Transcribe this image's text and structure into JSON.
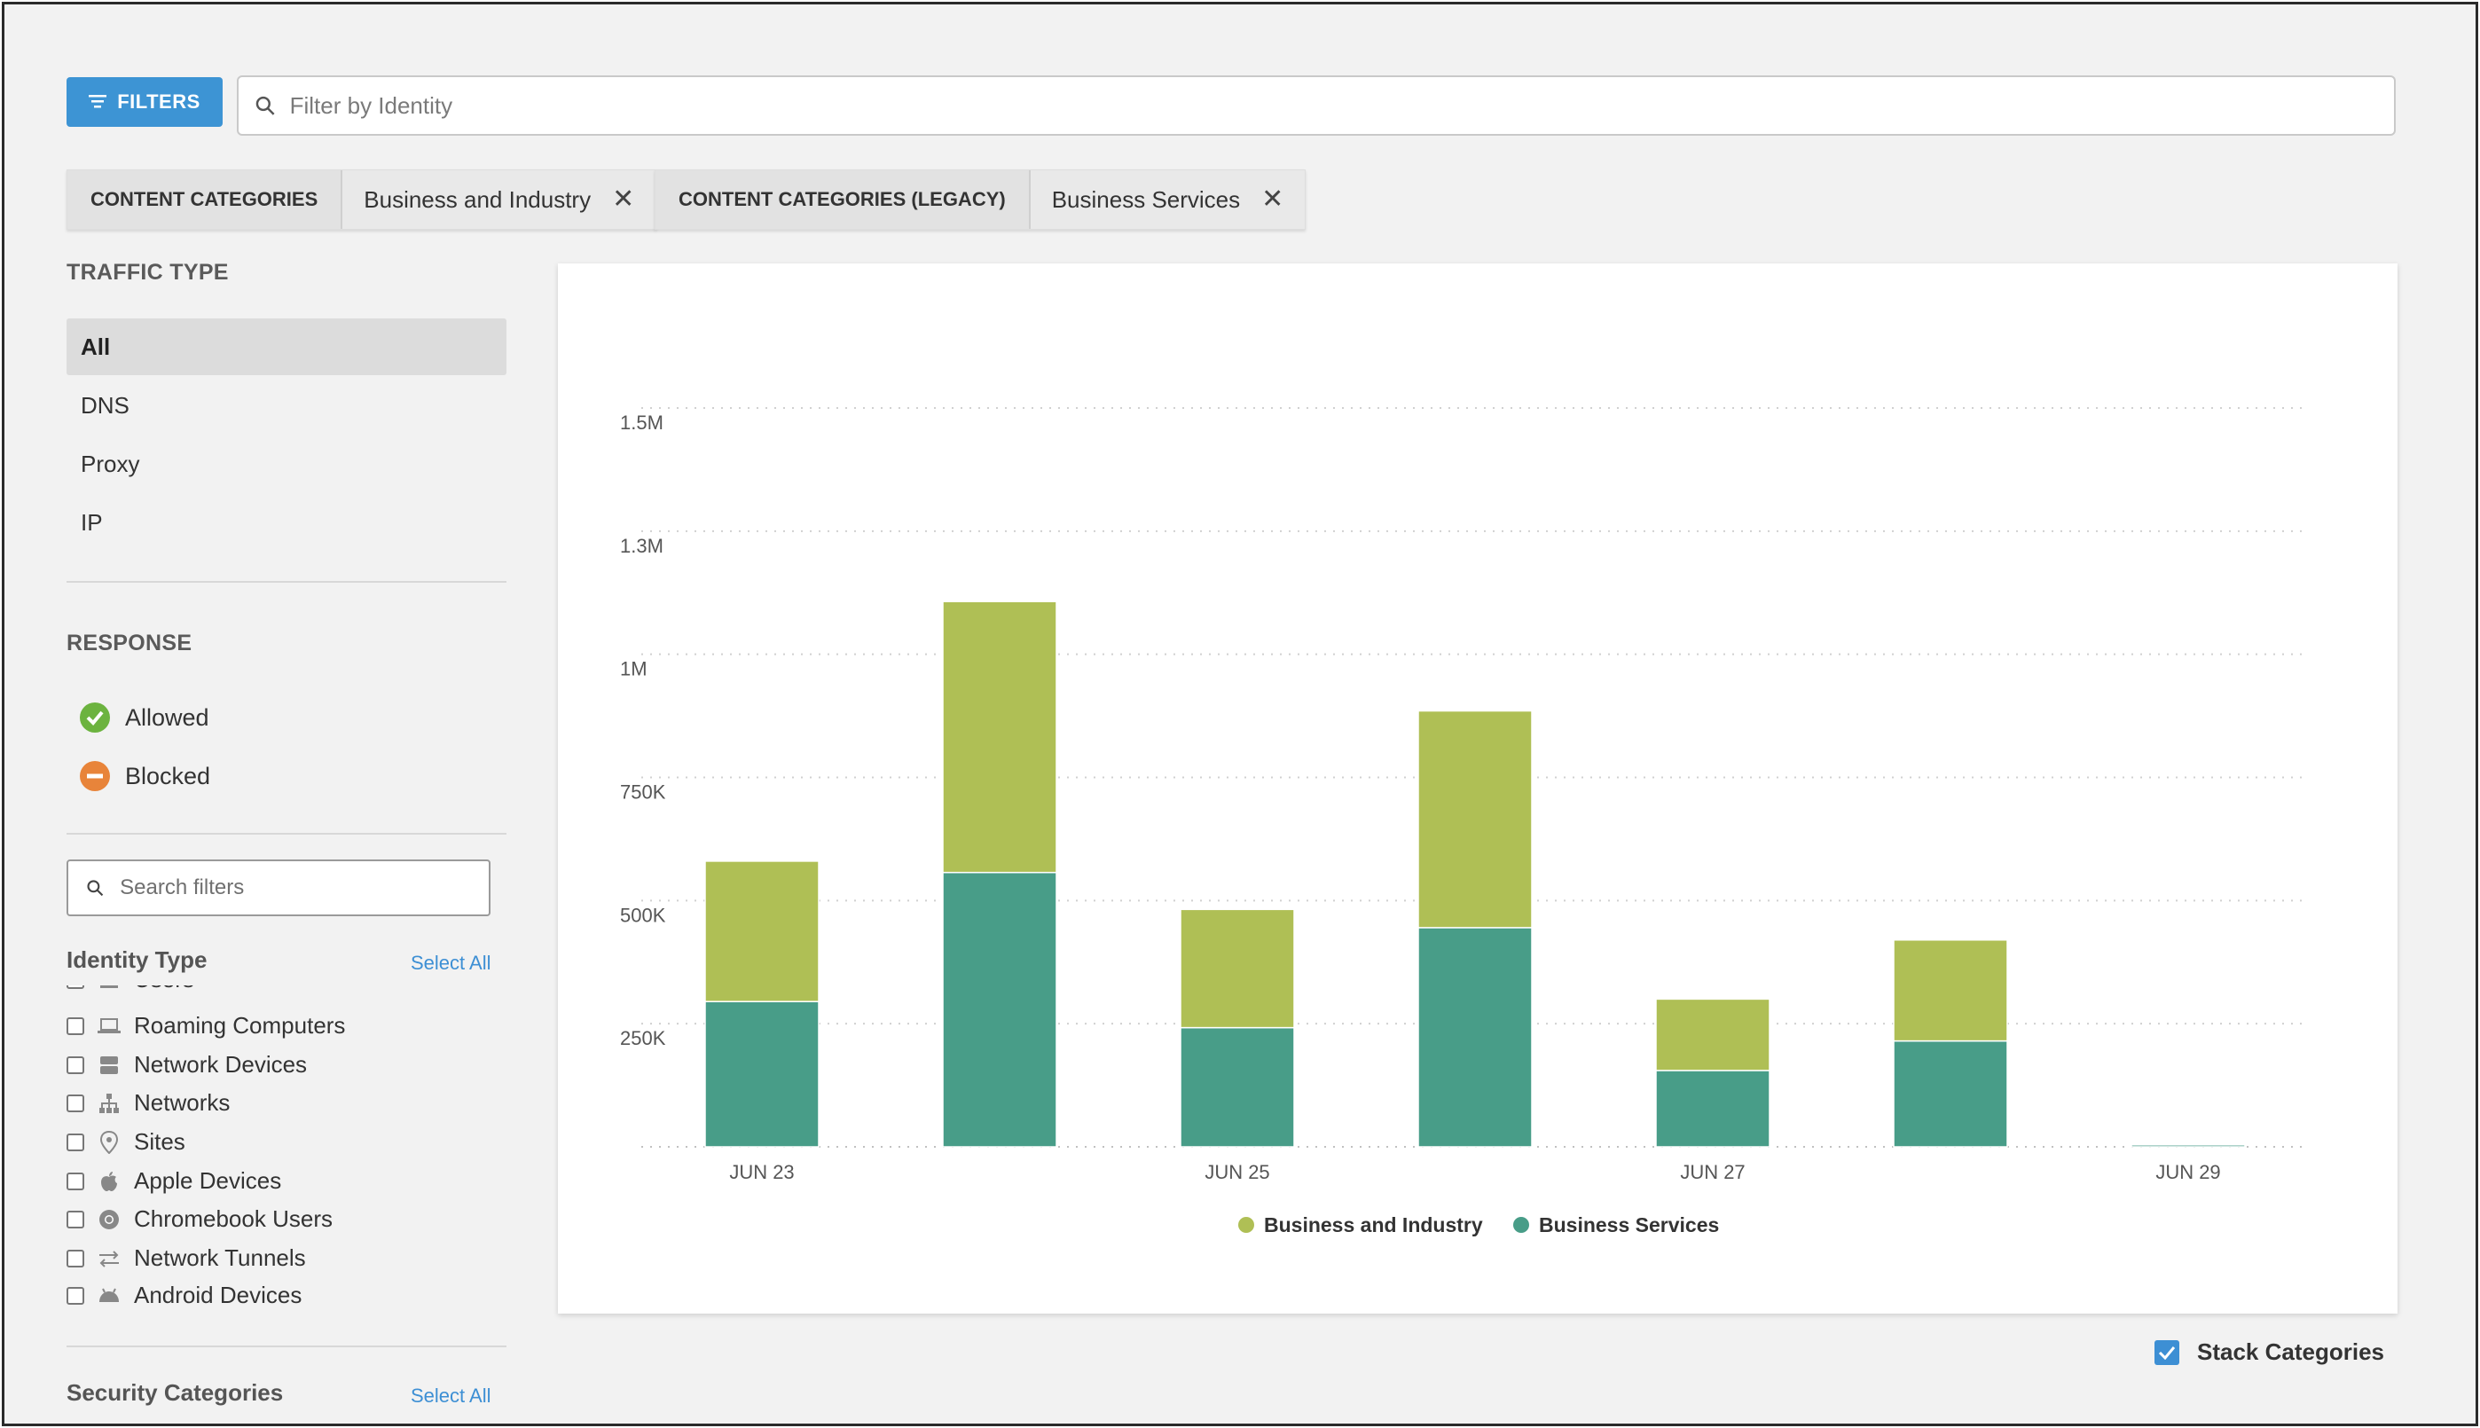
{
  "toolbar": {
    "filters_label": "FILTERS",
    "search_placeholder": "Filter by Identity"
  },
  "active_filters": [
    {
      "key": "CONTENT CATEGORIES",
      "value": "Business and Industry"
    },
    {
      "key": "CONTENT CATEGORIES (LEGACY)",
      "value": "Business Services"
    }
  ],
  "sidebar": {
    "traffic_type": {
      "title": "TRAFFIC TYPE",
      "items": [
        "All",
        "DNS",
        "Proxy",
        "IP"
      ],
      "selected": "All"
    },
    "response": {
      "title": "RESPONSE",
      "items": [
        {
          "label": "Allowed",
          "icon": "check-circle-icon",
          "color": "#6cb33f"
        },
        {
          "label": "Blocked",
          "icon": "minus-circle-icon",
          "color": "#e8843a"
        }
      ]
    },
    "search_filters_placeholder": "Search filters",
    "identity_type": {
      "title": "Identity Type",
      "select_all": "Select All",
      "partial_item": "Users",
      "items": [
        {
          "label": "Roaming Computers",
          "icon": "laptop-icon"
        },
        {
          "label": "Network Devices",
          "icon": "network-device-icon"
        },
        {
          "label": "Networks",
          "icon": "network-tree-icon"
        },
        {
          "label": "Sites",
          "icon": "location-pin-icon"
        },
        {
          "label": "Apple Devices",
          "icon": "apple-icon"
        },
        {
          "label": "Chromebook Users",
          "icon": "chrome-icon"
        },
        {
          "label": "Network Tunnels",
          "icon": "tunnel-arrows-icon"
        },
        {
          "label": "Android Devices",
          "icon": "android-icon"
        }
      ]
    },
    "security_categories": {
      "title": "Security Categories",
      "select_all": "Select All"
    }
  },
  "colors": {
    "business_industry": "#afbf55",
    "business_services": "#489d88",
    "accent": "#3d94d4"
  },
  "chart_data": {
    "type": "bar",
    "stacked": true,
    "x_tick_labels": [
      "JUN 23",
      "JUN 25",
      "JUN 27",
      "JUN 29"
    ],
    "categories": [
      "Jun 23",
      "Jun 24",
      "Jun 25",
      "Jun 26",
      "Jun 27",
      "Jun 28",
      "Jun 29"
    ],
    "series": [
      {
        "name": "Business Services",
        "values": [
          295000,
          557000,
          242000,
          445000,
          155000,
          215000,
          4000
        ]
      },
      {
        "name": "Business and Industry",
        "values": [
          285000,
          550000,
          240000,
          440000,
          145000,
          205000,
          1000
        ]
      }
    ],
    "y_ticks": [
      "250K",
      "500K",
      "750K",
      "1M",
      "1.3M",
      "1.5M"
    ],
    "ylim": [
      0,
      1500000
    ],
    "grid": true,
    "legend_position": "bottom",
    "title": "",
    "xlabel": "",
    "ylabel": ""
  },
  "stack_categories": {
    "label": "Stack Categories",
    "checked": true
  }
}
